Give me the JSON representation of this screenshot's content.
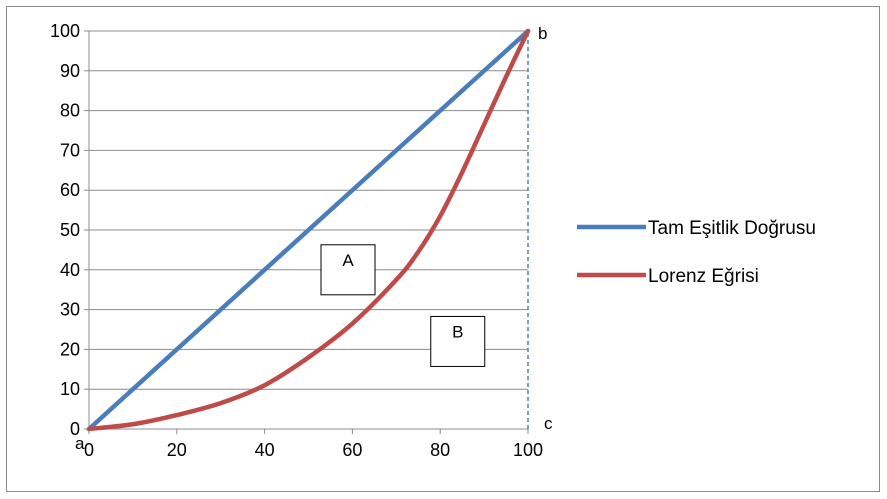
{
  "chart_data": {
    "type": "line",
    "title": "",
    "xlabel": "",
    "ylabel": "",
    "xlim": [
      0,
      100
    ],
    "ylim": [
      0,
      100
    ],
    "x_ticks": [
      "0",
      "20",
      "40",
      "60",
      "80",
      "100"
    ],
    "y_ticks": [
      "0",
      "10",
      "20",
      "30",
      "40",
      "50",
      "60",
      "70",
      "80",
      "90",
      "100"
    ],
    "grid": "horizontal",
    "legend_position": "right",
    "series": [
      {
        "name": "Tam Eşitlik Doğrusu",
        "color": "#4a7ebb",
        "x": [
          0,
          100
        ],
        "y": [
          0,
          100
        ]
      },
      {
        "name": "Lorenz Eğrisi",
        "color": "#be4b48",
        "x": [
          0,
          10,
          20,
          30,
          40,
          50,
          60,
          70,
          75,
          80,
          85,
          90,
          95,
          100
        ],
        "y": [
          0,
          1.2,
          3.5,
          6.5,
          11,
          18,
          26.5,
          37.5,
          44.5,
          53.5,
          64.5,
          76.5,
          88.5,
          100
        ]
      }
    ],
    "reference_line": {
      "x": 100,
      "y": [
        0,
        100
      ],
      "style": "dashed",
      "color": "#4a7ebb"
    },
    "corner_labels": [
      {
        "text": "a",
        "x": 0,
        "y": 0
      },
      {
        "text": "b",
        "x": 100,
        "y": 100
      },
      {
        "text": "c",
        "x": 100,
        "y": 0
      }
    ],
    "area_labels": [
      {
        "text": "A",
        "x": 59,
        "y": 40
      },
      {
        "text": "B",
        "x": 84,
        "y": 22
      }
    ]
  }
}
